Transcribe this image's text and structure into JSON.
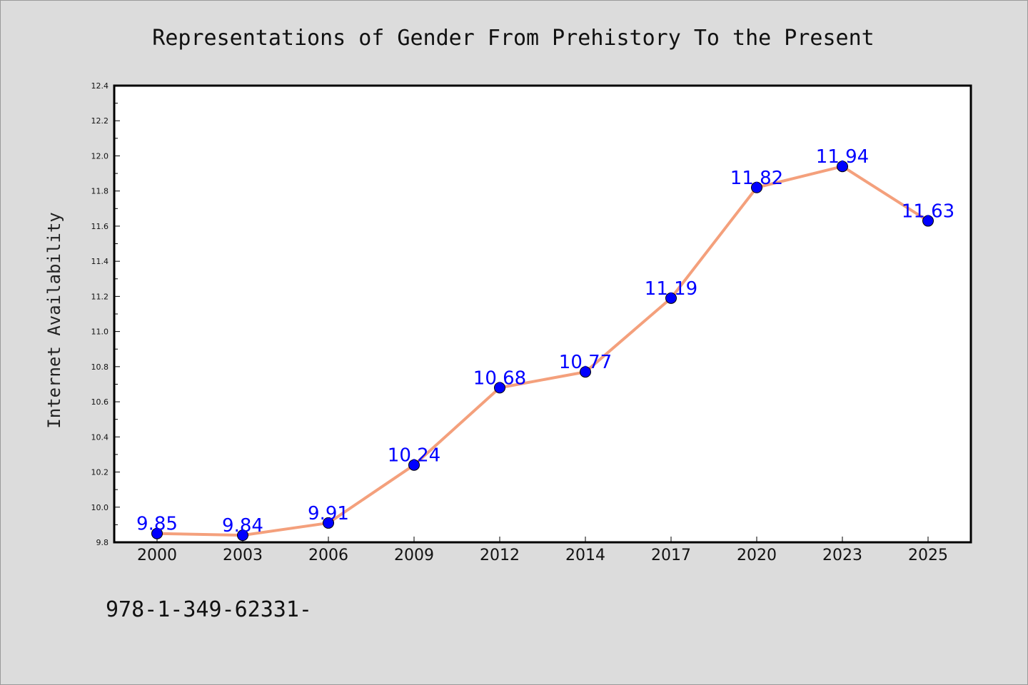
{
  "chart_data": {
    "type": "line",
    "title": "Representations of Gender From Prehistory To the Present",
    "xlabel": "",
    "ylabel": "Internet Availability",
    "categories": [
      "2000",
      "2003",
      "2006",
      "2009",
      "2012",
      "2014",
      "2017",
      "2020",
      "2023",
      "2025"
    ],
    "series": [
      {
        "values": [
          9.85,
          9.84,
          9.91,
          10.24,
          10.68,
          10.77,
          11.19,
          11.82,
          11.94,
          11.63
        ],
        "line_color": "#f4a07c",
        "marker_color": "#0000ff"
      }
    ],
    "data_labels": [
      "9.85",
      "9.84",
      "9.91",
      "10.24",
      "10.68",
      "10.77",
      "11.19",
      "11.82",
      "11.94",
      "11.63"
    ],
    "ylim": [
      9.8,
      12.4
    ],
    "yticks": [
      "9.8",
      "10.0",
      "10.2",
      "10.4",
      "10.6",
      "10.8",
      "11.0",
      "11.2",
      "11.4",
      "11.6",
      "11.8",
      "12.0",
      "12.2",
      "12.4"
    ],
    "grid": false,
    "legend": "none"
  },
  "footer_text": "978-1-349-62331-"
}
